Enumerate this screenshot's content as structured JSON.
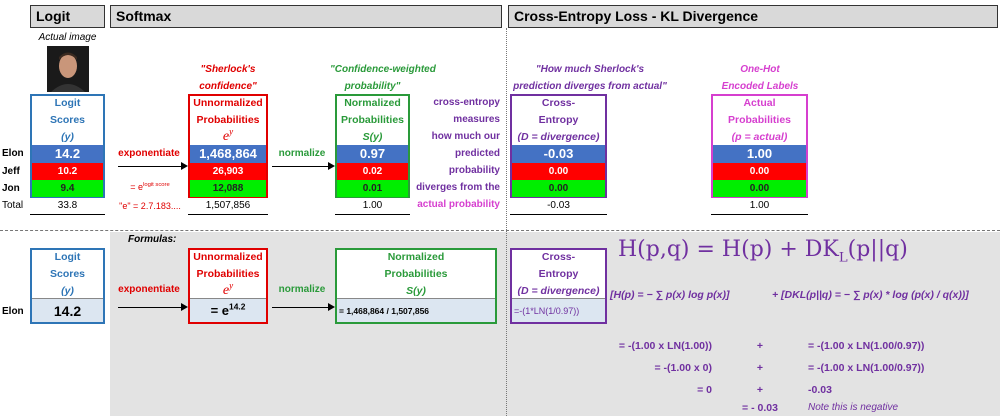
{
  "headers": {
    "logit": "Logit",
    "softmax": "Softmax",
    "ce": "Cross-Entropy Loss - KL Divergence"
  },
  "image_caption": "Actual image",
  "captions": [
    [
      "\"Sherlock's",
      "confidence\""
    ],
    [
      "\"Confidence-weighted",
      "probability\""
    ],
    [
      "\"How much Sherlock's",
      "prediction diverges from actual\""
    ],
    [
      "One-Hot",
      "Encoded Labels"
    ]
  ],
  "row_labels": [
    "Elon",
    "Jeff",
    "Jon"
  ],
  "total_label": "Total",
  "columns": [
    {
      "header": [
        "Logit",
        "Scores",
        {
          "text": "(y)"
        }
      ],
      "values": [
        "14.2",
        "10.2",
        "9.4"
      ],
      "total": "33.8"
    },
    {
      "header": [
        "Unnormalized",
        "Probabilities",
        {
          "base": "e",
          "sup": "y"
        }
      ],
      "values": [
        "1,468,864",
        "26,903",
        "12,088"
      ],
      "total": "1,507,856"
    },
    {
      "header": [
        "Normalized",
        "Probabilities",
        {
          "text": "S(y)"
        }
      ],
      "values": [
        "0.97",
        "0.02",
        "0.01"
      ],
      "total": "1.00"
    },
    {
      "header": [
        "Cross-",
        "Entropy",
        {
          "text": "(D = divergence)"
        }
      ],
      "values": [
        "-0.03",
        "0.00",
        "0.00"
      ],
      "total": "-0.03"
    },
    {
      "header": [
        "Actual",
        "Probabilities",
        {
          "text": "(p = actual)"
        }
      ],
      "values": [
        "1.00",
        "0.00",
        "0.00"
      ],
      "total": "1.00"
    }
  ],
  "arrows": {
    "exp": "exponentiate",
    "norm": "normalize"
  },
  "notes": {
    "exp_base": "= e",
    "exp_sup": "logit score",
    "e_value": "\"e\" = 2.7.183...."
  },
  "explanation": [
    "cross-entropy",
    "measures",
    "how much our",
    "predicted",
    "probability",
    "diverges from the",
    "actual probability"
  ],
  "formulas": {
    "title": "Formulas:",
    "row_label": "Elon",
    "logit": "14.2",
    "exp_base": "= e",
    "exp_sup": "14.2",
    "norm": "= 1,468,864 / 1,507,856",
    "ce": "=-(1*LN(1/0.97))",
    "big": "H(p,q) = H(p) + DK",
    "big_sub": "L",
    "big_end": "(p||q)",
    "entropy": "[H(p) = − ∑ p(x) log p(x)]",
    "kl": "+ [DKL(p||q) = − ∑ p(x) * log (p(x) / q(x))]",
    "rows": [
      [
        "= -(1.00 x LN(1.00))",
        "+",
        "= -(1.00 x LN(1.00/0.97))"
      ],
      [
        "= -(1.00 x 0)",
        "+",
        "= -(1.00 x LN(1.00/0.97))"
      ],
      [
        "= 0",
        "+",
        "-0.03"
      ]
    ],
    "result": "= - 0.03",
    "note": "Note this is negative"
  }
}
